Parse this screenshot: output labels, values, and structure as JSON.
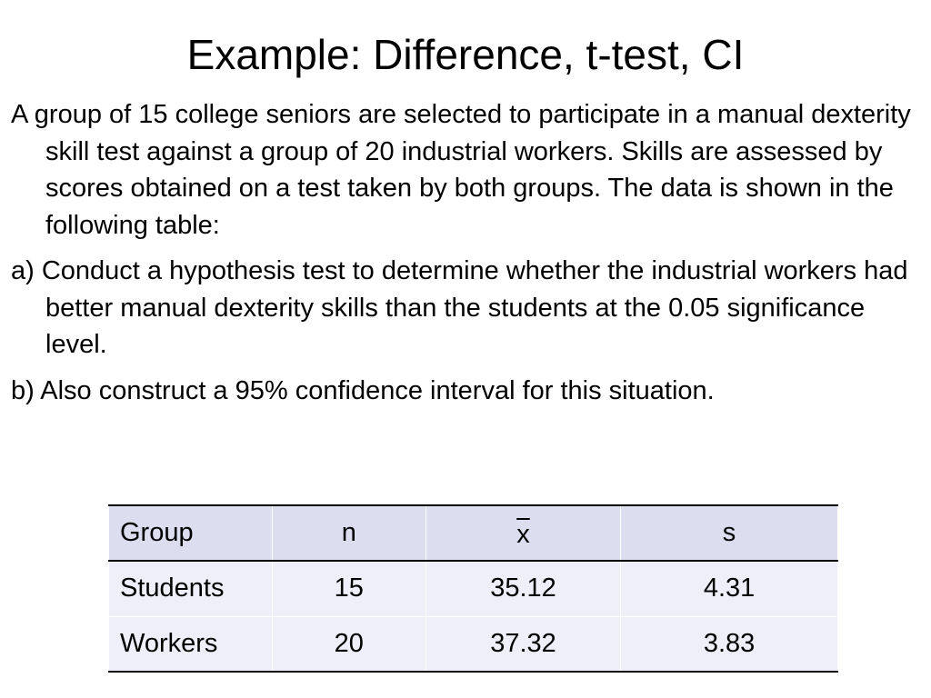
{
  "title": "Example: Difference, t-test, CI",
  "paragraphs": [
    "A group of 15 college seniors are selected to participate in a manual dexterity skill test against a group of 20 industrial workers. Skills are assessed by scores obtained on a test taken by both groups. The data is shown in the following table:",
    "a) Conduct a hypothesis test to determine whether the industrial workers had better manual dexterity skills than the students at the 0.05 significance level.",
    "b) Also construct a 95% confidence interval for this situation."
  ],
  "table": {
    "headers": [
      "Group",
      "n",
      "x",
      "s"
    ],
    "rows": [
      [
        "Students",
        "15",
        "35.12",
        "4.31"
      ],
      [
        "Workers",
        "20",
        "37.32",
        "3.83"
      ]
    ]
  }
}
